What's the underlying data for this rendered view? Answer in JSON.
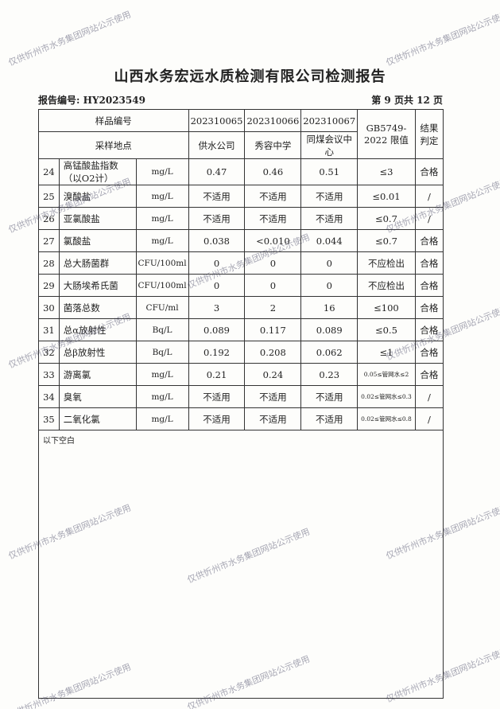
{
  "title": "山西水务宏远水质检测有限公司检测报告",
  "report_no": "报告编号: HY2023549",
  "page_info": "第 9 页共 12 页",
  "header": {
    "sample_no_label": "样品编号",
    "location_label": "采样地点",
    "samples": [
      "202310065",
      "202310066",
      "202310067"
    ],
    "locations": [
      "供水公司",
      "秀容中学",
      "同煤会议中心"
    ],
    "limit_label": "GB5749-2022 限值",
    "result_label": "结果判定"
  },
  "rows": [
    {
      "no": "24",
      "name": "高锰酸盐指数（以O2计）",
      "unit": "mg/L",
      "v": [
        "0.47",
        "0.46",
        "0.51"
      ],
      "limit": "≤3",
      "result": "合格"
    },
    {
      "no": "25",
      "name": "溴酸盐",
      "unit": "mg/L",
      "v": [
        "不适用",
        "不适用",
        "不适用"
      ],
      "limit": "≤0.01",
      "result": "/"
    },
    {
      "no": "26",
      "name": "亚氯酸盐",
      "unit": "mg/L",
      "v": [
        "不适用",
        "不适用",
        "不适用"
      ],
      "limit": "≤0.7",
      "result": "/"
    },
    {
      "no": "27",
      "name": "氯酸盐",
      "unit": "mg/L",
      "v": [
        "0.038",
        "<0.010",
        "0.044"
      ],
      "limit": "≤0.7",
      "result": "合格"
    },
    {
      "no": "28",
      "name": "总大肠菌群",
      "unit": "CFU/100ml",
      "v": [
        "0",
        "0",
        "0"
      ],
      "limit": "不应检出",
      "result": "合格"
    },
    {
      "no": "29",
      "name": "大肠埃希氏菌",
      "unit": "CFU/100ml",
      "v": [
        "0",
        "0",
        "0"
      ],
      "limit": "不应检出",
      "result": "合格"
    },
    {
      "no": "30",
      "name": "菌落总数",
      "unit": "CFU/ml",
      "v": [
        "3",
        "2",
        "16"
      ],
      "limit": "≤100",
      "result": "合格"
    },
    {
      "no": "31",
      "name": "总α放射性",
      "unit": "Bq/L",
      "v": [
        "0.089",
        "0.117",
        "0.089"
      ],
      "limit": "≤0.5",
      "result": "合格"
    },
    {
      "no": "32",
      "name": "总β放射性",
      "unit": "Bq/L",
      "v": [
        "0.192",
        "0.208",
        "0.062"
      ],
      "limit": "≤1",
      "result": "合格"
    },
    {
      "no": "33",
      "name": "游离氯",
      "unit": "mg/L",
      "v": [
        "0.21",
        "0.24",
        "0.23"
      ],
      "limit": "0.05≤管网水≤2",
      "result": "合格"
    },
    {
      "no": "34",
      "name": "臭氧",
      "unit": "mg/L",
      "v": [
        "不适用",
        "不适用",
        "不适用"
      ],
      "limit": "0.02≤管网水≤0.3",
      "result": "/"
    },
    {
      "no": "35",
      "name": "二氧化氯",
      "unit": "mg/L",
      "v": [
        "不适用",
        "不适用",
        "不适用"
      ],
      "limit": "0.02≤管网水≤0.8",
      "result": "/"
    }
  ],
  "blank_note": "以下空白",
  "watermark": "仅供忻州市水务集团网站公示使用"
}
